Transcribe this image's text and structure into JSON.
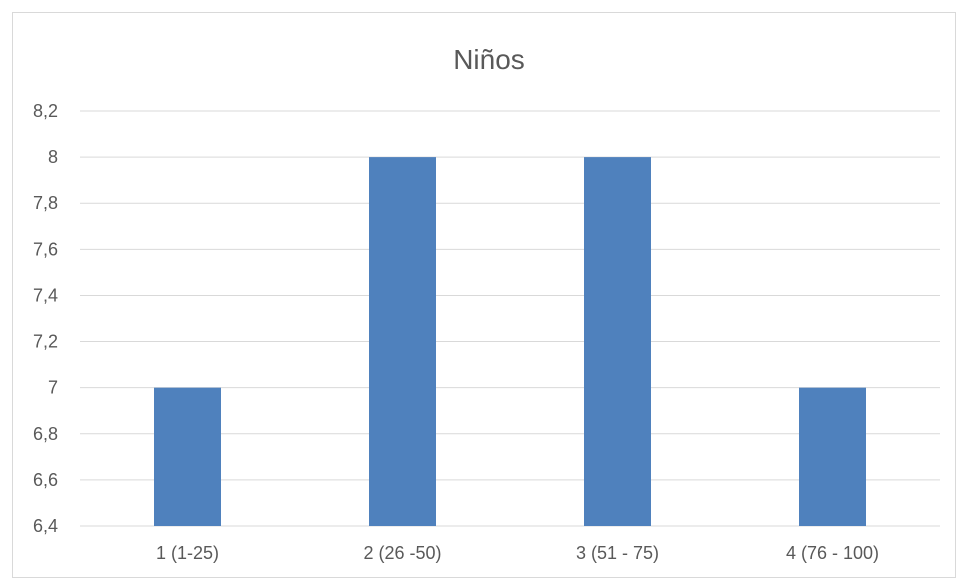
{
  "chart_data": {
    "type": "bar",
    "title": "Niños",
    "xlabel": "",
    "ylabel": "",
    "categories": [
      "1 (1-25)",
      "2 (26 -50)",
      "3 (51 - 75)",
      "4 (76 - 100)"
    ],
    "values": [
      7,
      8,
      8,
      7
    ],
    "ylim": [
      6.4,
      8.2
    ],
    "yticks": [
      "6,4",
      "6,6",
      "6,8",
      "7",
      "7,2",
      "7,4",
      "7,6",
      "7,8",
      "8",
      "8,2"
    ],
    "grid": true,
    "legend": "none",
    "bar_color": "#4f81bd"
  }
}
